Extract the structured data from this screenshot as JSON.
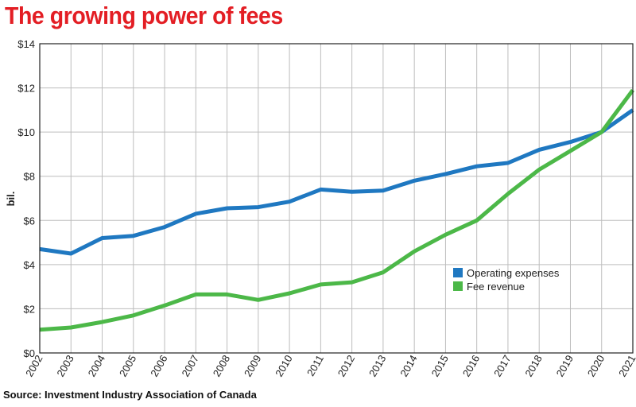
{
  "title": "The growing power of fees",
  "source": "Source: Investment Industry Association of Canada",
  "colors": {
    "title": "#e31e24",
    "operating_expenses": "#1f78c1",
    "fee_revenue": "#4cb848",
    "grid": "#bdbdbd",
    "axis": "#222222"
  },
  "chart_data": {
    "type": "line",
    "title": "The growing power of fees",
    "xlabel": "",
    "ylabel": "bil.",
    "x": [
      "2002",
      "2003",
      "2004",
      "2005",
      "2006",
      "2007",
      "2008",
      "2009",
      "2010",
      "2011",
      "2012",
      "2013",
      "2014",
      "2015",
      "2016",
      "2017",
      "2018",
      "2019",
      "2020",
      "2021"
    ],
    "ylim": [
      0,
      14
    ],
    "yticks": [
      0,
      2,
      4,
      6,
      8,
      10,
      12,
      14
    ],
    "ytick_labels": [
      "$0",
      "$2",
      "$4",
      "$6",
      "$8",
      "$10",
      "$12",
      "$14"
    ],
    "grid": true,
    "legend_position": "center-right",
    "series": [
      {
        "name": "Operating expenses",
        "color": "#1f78c1",
        "values": [
          4.7,
          4.5,
          5.2,
          5.3,
          5.7,
          6.3,
          6.55,
          6.6,
          6.85,
          7.4,
          7.3,
          7.35,
          7.8,
          8.1,
          8.45,
          8.6,
          9.2,
          9.55,
          10.0,
          11.0
        ]
      },
      {
        "name": "Fee revenue",
        "color": "#4cb848",
        "values": [
          1.05,
          1.15,
          1.4,
          1.7,
          2.15,
          2.65,
          2.65,
          2.4,
          2.7,
          3.1,
          3.2,
          3.65,
          4.6,
          5.35,
          6.0,
          7.2,
          8.3,
          9.15,
          10.0,
          11.9
        ]
      }
    ]
  }
}
